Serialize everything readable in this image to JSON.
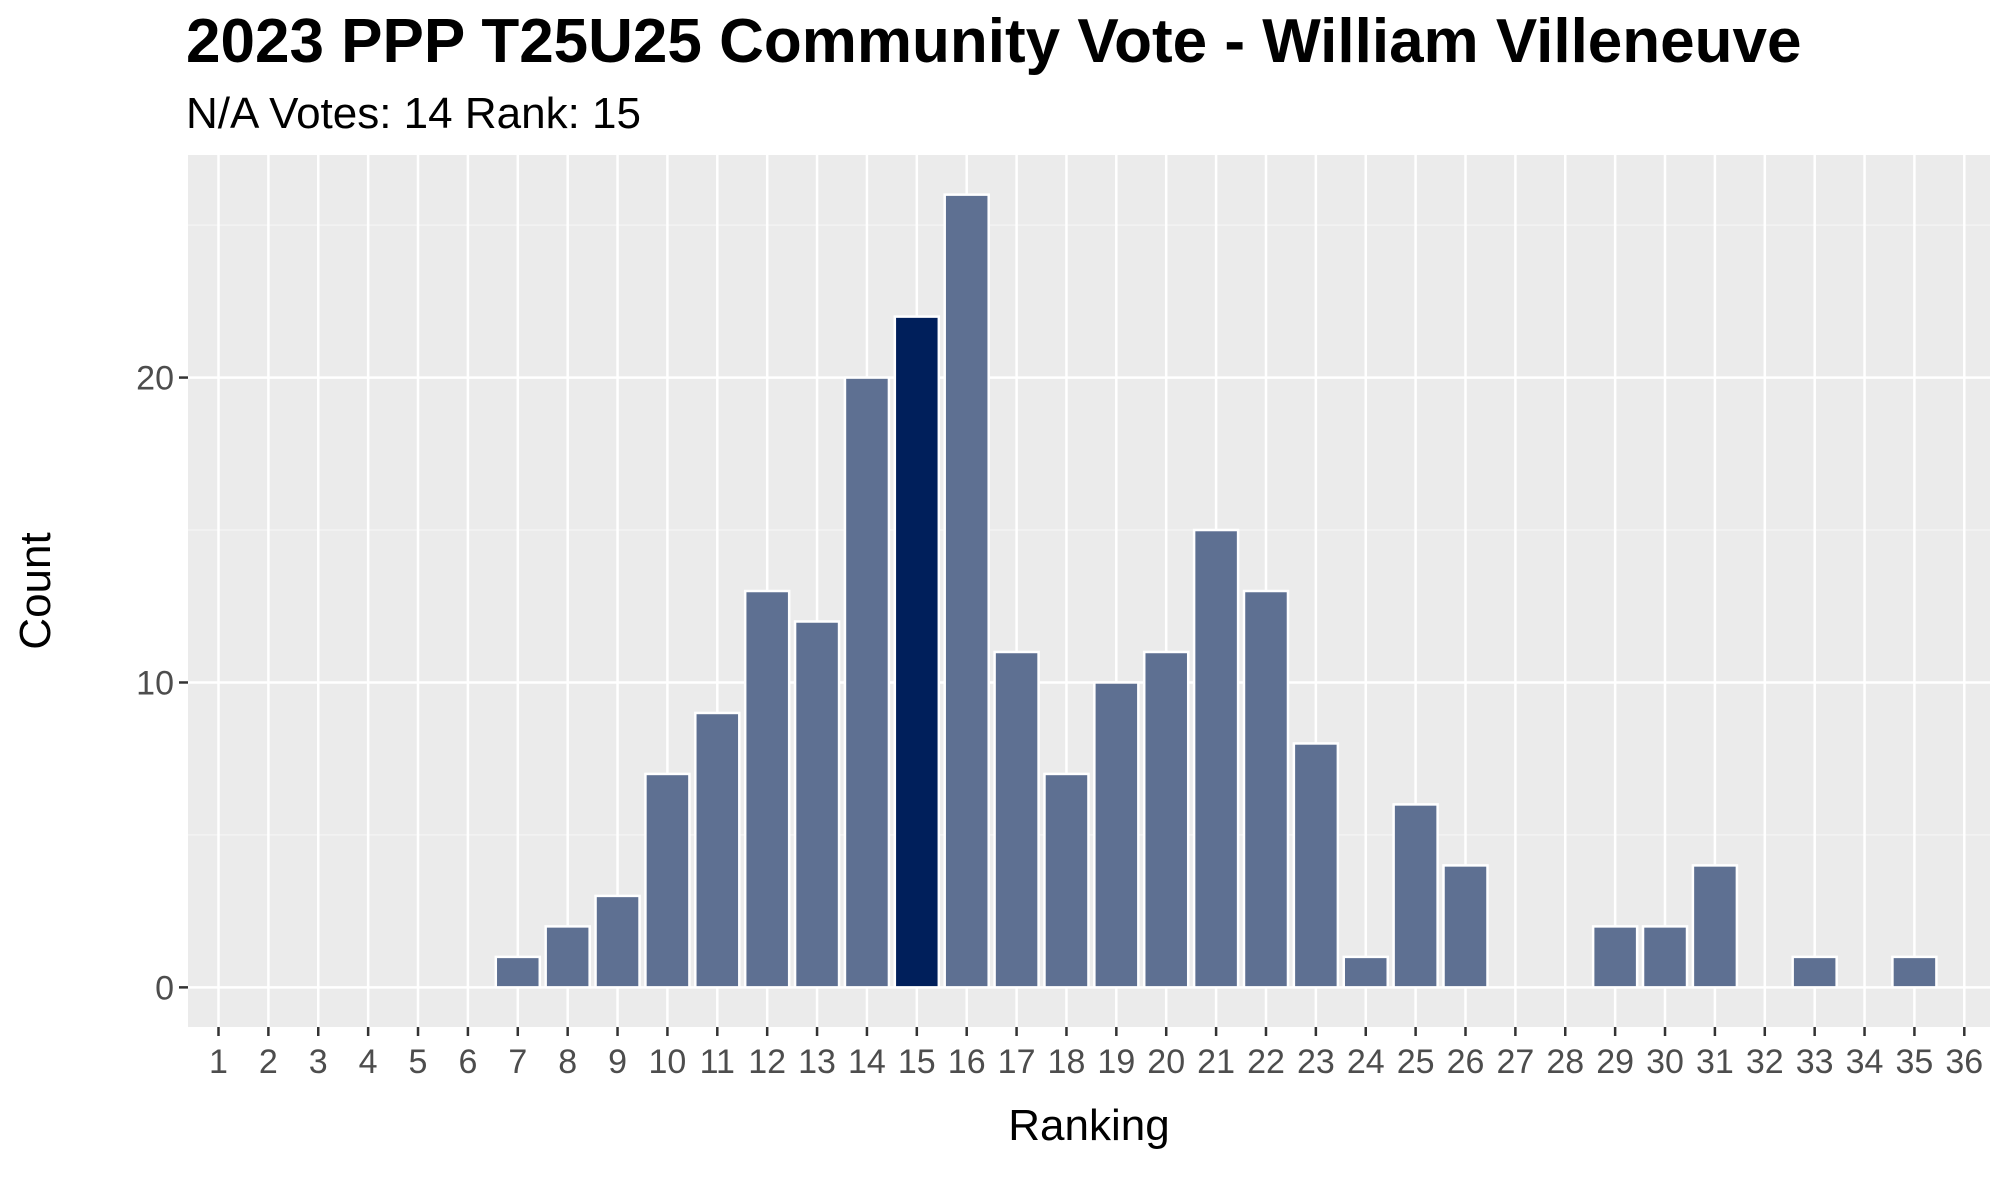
{
  "chart_data": {
    "type": "bar",
    "title": "2023 PPP T25U25 Community Vote - William Villeneuve",
    "subtitle": "N/A Votes: 14  Rank: 15",
    "xlabel": "Ranking",
    "ylabel": "Count",
    "categories": [
      "1",
      "2",
      "3",
      "4",
      "5",
      "6",
      "7",
      "8",
      "9",
      "10",
      "11",
      "12",
      "13",
      "14",
      "15",
      "16",
      "17",
      "18",
      "19",
      "20",
      "21",
      "22",
      "23",
      "24",
      "25",
      "26",
      "27",
      "28",
      "29",
      "30",
      "31",
      "32",
      "33",
      "34",
      "35",
      "36"
    ],
    "values": [
      0,
      0,
      0,
      0,
      0,
      0,
      1,
      2,
      3,
      7,
      9,
      13,
      12,
      20,
      22,
      26,
      11,
      7,
      10,
      11,
      15,
      13,
      8,
      1,
      6,
      4,
      0,
      0,
      2,
      2,
      4,
      0,
      1,
      0,
      1,
      0
    ],
    "highlight_category": "15",
    "y_ticks": [
      0,
      10,
      20
    ],
    "ylim": [
      -1.3,
      27.3
    ],
    "grid": true,
    "legend": "none",
    "colors": {
      "panel_background": "#ebebeb",
      "grid_major": "#ffffff",
      "grid_minor": "#f3f3f3",
      "bar": "#5e7092",
      "bar_highlight": "#001f5b",
      "bar_outline": "#ffffff"
    }
  }
}
